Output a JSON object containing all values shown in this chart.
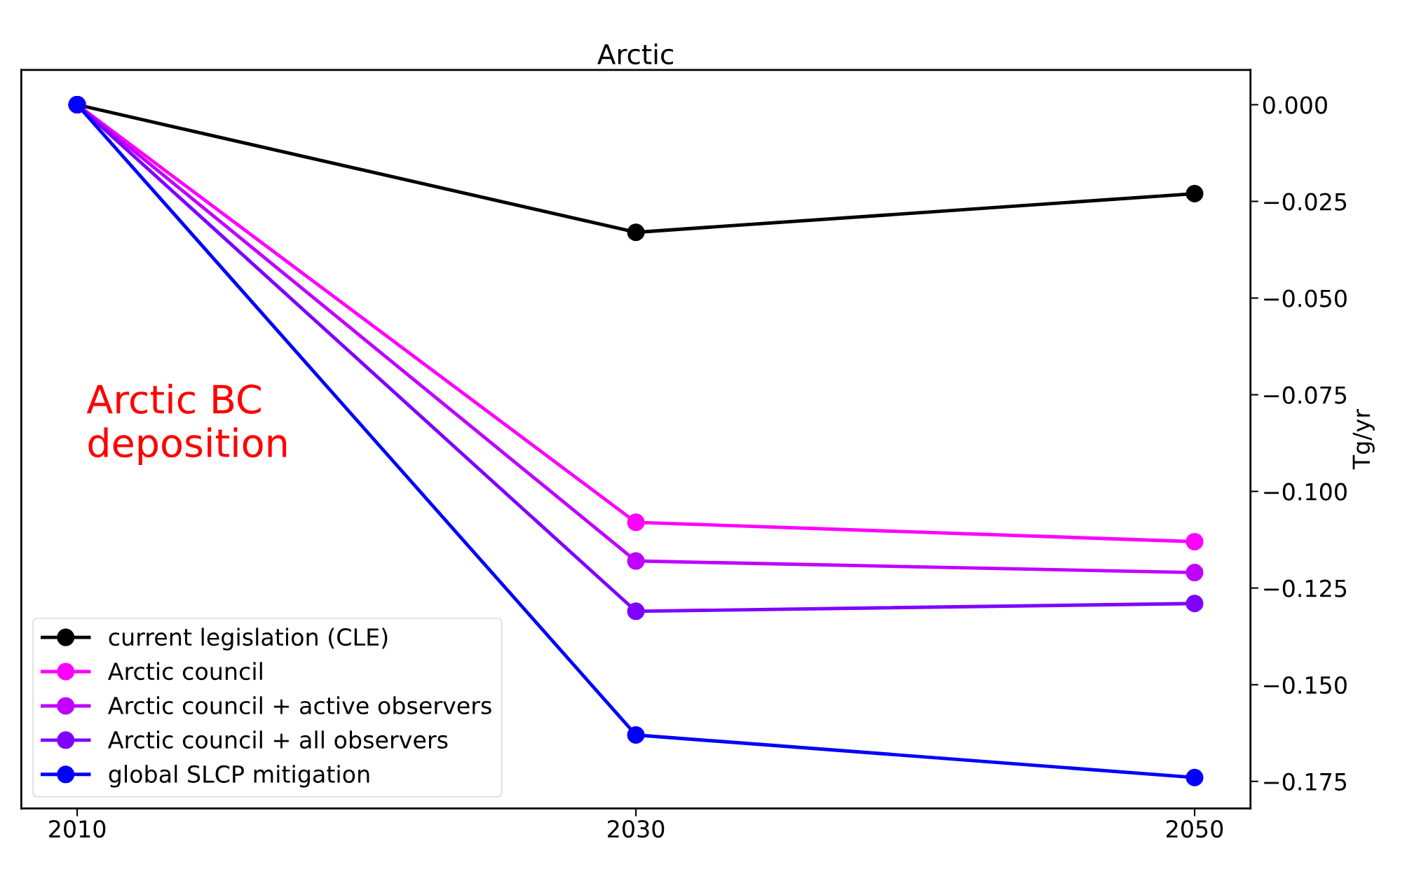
{
  "chart_data": {
    "type": "line",
    "title": "Arctic",
    "ylabel": "Tg/yr",
    "annotations": [
      "Arctic BC\ndeposition"
    ],
    "x": [
      2010,
      2030,
      2050
    ],
    "xlim": [
      2008,
      2052
    ],
    "xticks": [
      2010,
      2030,
      2050
    ],
    "ylim": [
      -0.182,
      0.009
    ],
    "yticks": [
      {
        "value": 0,
        "label": "0.000"
      },
      {
        "value": -0.025,
        "label": "−0.025"
      },
      {
        "value": -0.05,
        "label": "−0.050"
      },
      {
        "value": -0.075,
        "label": "−0.075"
      },
      {
        "value": -0.1,
        "label": "−0.100"
      },
      {
        "value": -0.125,
        "label": "−0.125"
      },
      {
        "value": -0.15,
        "label": "−0.150"
      },
      {
        "value": -0.175,
        "label": "−0.175"
      }
    ],
    "series": [
      {
        "name": "current legislation (CLE)",
        "color": "#000000",
        "values": [
          0,
          -0.033,
          -0.023
        ]
      },
      {
        "name": "Arctic council",
        "color": "#ff00ff",
        "values": [
          0,
          -0.108,
          -0.113
        ]
      },
      {
        "name": "Arctic council + active observers",
        "color": "#bf00ff",
        "values": [
          0,
          -0.118,
          -0.121
        ]
      },
      {
        "name": "Arctic council + all observers",
        "color": "#7f00ff",
        "values": [
          0,
          -0.131,
          -0.129
        ]
      },
      {
        "name": "global SLCP mitigation",
        "color": "#0000ff",
        "values": [
          0,
          -0.163,
          -0.174
        ]
      }
    ],
    "marker": "circle",
    "line_style": "solid",
    "grid": false,
    "legend": "bottom left"
  }
}
